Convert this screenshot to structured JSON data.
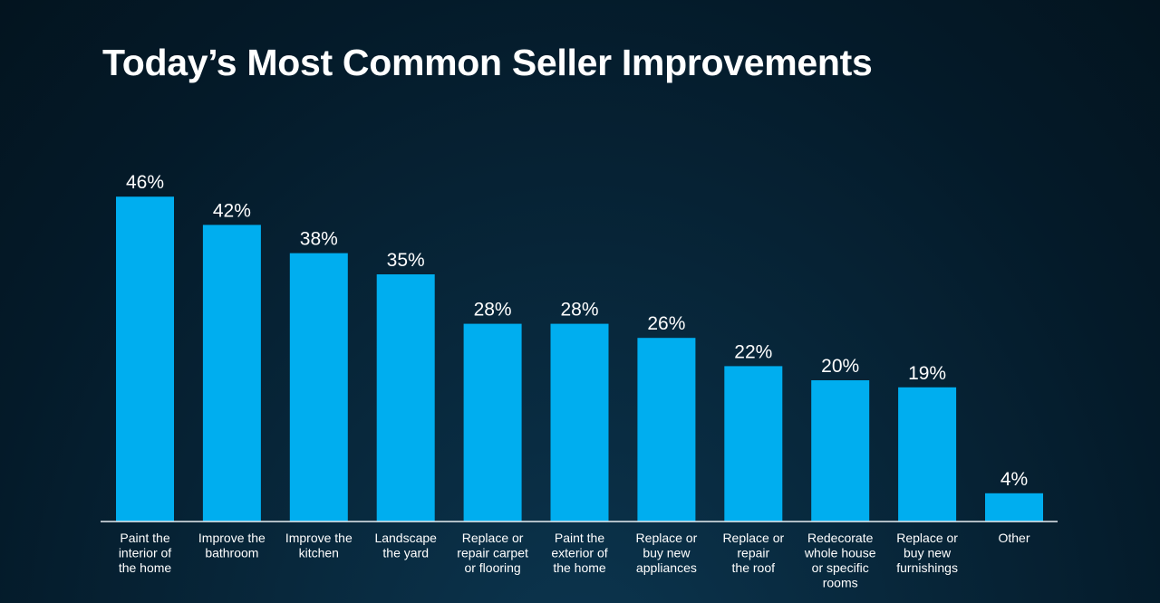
{
  "chart_data": {
    "type": "bar",
    "title": "Today’s Most Common Seller Improvements",
    "xlabel": "",
    "ylabel": "",
    "ylim": [
      0,
      50
    ],
    "grid": false,
    "categories": [
      "Paint the interior of the home",
      "Improve the bathroom",
      "Improve the kitchen",
      "Landscape the yard",
      "Replace or repair carpet or flooring",
      "Paint the exterior of the home",
      "Replace or buy new appliances",
      "Replace or repair the roof",
      "Redecorate whole house or specific rooms",
      "Replace or buy new furnishings",
      "Other"
    ],
    "category_lines": [
      [
        "Paint the",
        "interior of",
        "the home"
      ],
      [
        "Improve the",
        "bathroom"
      ],
      [
        "Improve the",
        "kitchen"
      ],
      [
        "Landscape",
        "the yard"
      ],
      [
        "Replace or",
        "repair carpet",
        "or flooring"
      ],
      [
        "Paint the",
        "exterior of",
        "the home"
      ],
      [
        "Replace or",
        "buy new",
        "appliances"
      ],
      [
        "Replace or",
        "repair",
        "the roof"
      ],
      [
        "Redecorate",
        "whole house",
        "or specific",
        "rooms"
      ],
      [
        "Replace or",
        "buy new",
        "furnishings"
      ],
      [
        "Other"
      ]
    ],
    "values": [
      46,
      42,
      38,
      35,
      28,
      28,
      26,
      22,
      20,
      19,
      4
    ],
    "value_labels": [
      "46%",
      "42%",
      "38%",
      "35%",
      "28%",
      "28%",
      "26%",
      "22%",
      "20%",
      "19%",
      "4%"
    ],
    "bar_color": "#00aeef"
  }
}
